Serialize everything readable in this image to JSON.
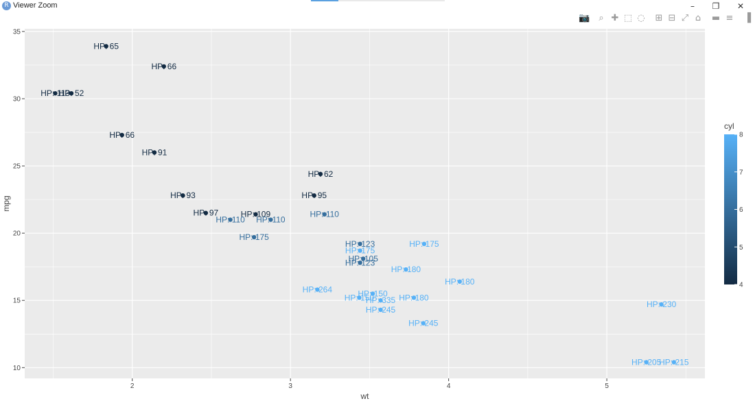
{
  "window": {
    "title": "Viewer Zoom",
    "app_icon": "R",
    "minimize_label": "–",
    "restore_label": "❐",
    "close_label": "✕"
  },
  "modebar": {
    "icons": [
      {
        "name": "camera-icon",
        "glyph": "📷"
      },
      {
        "name": "zoom-icon",
        "glyph": "⌕"
      },
      {
        "name": "pan-icon",
        "glyph": "✚"
      },
      {
        "name": "box-select-icon",
        "glyph": "⬚"
      },
      {
        "name": "lasso-select-icon",
        "glyph": "◌"
      },
      {
        "name": "zoom-in-icon",
        "glyph": "⊞"
      },
      {
        "name": "zoom-out-icon",
        "glyph": "⊟"
      },
      {
        "name": "autoscale-icon",
        "glyph": "⤢"
      },
      {
        "name": "reset-axes-icon",
        "glyph": "⌂"
      },
      {
        "name": "spike-lines-icon",
        "glyph": "▬"
      },
      {
        "name": "compare-hover-icon",
        "glyph": "≡"
      },
      {
        "name": "plotly-logo-icon",
        "glyph": "▐"
      }
    ]
  },
  "colors": {
    "low": "#132b43",
    "high": "#56b1f7",
    "panel": "#ebebeb",
    "grid": "#ffffff"
  },
  "chart_data": {
    "type": "scatter",
    "title": "",
    "xlabel": "wt",
    "ylabel": "mpg",
    "xlim": [
      1.32,
      5.62
    ],
    "ylim": [
      9.2,
      35.2
    ],
    "xticks": [
      2,
      3,
      4,
      5
    ],
    "yticks": [
      10,
      15,
      20,
      25,
      30,
      35
    ],
    "grid": true,
    "colorbar": {
      "title": "cyl",
      "min": 4,
      "max": 8,
      "ticks": [
        4,
        5,
        6,
        7,
        8
      ],
      "position": "right"
    },
    "points": [
      {
        "wt": 1.835,
        "mpg": 33.9,
        "cyl": 4,
        "label": "HP: 65"
      },
      {
        "wt": 2.2,
        "mpg": 32.4,
        "cyl": 4,
        "label": "HP: 66"
      },
      {
        "wt": 1.513,
        "mpg": 30.4,
        "cyl": 4,
        "label": "HP: 113"
      },
      {
        "wt": 1.615,
        "mpg": 30.4,
        "cyl": 4,
        "label": "HP: 52"
      },
      {
        "wt": 1.935,
        "mpg": 27.3,
        "cyl": 4,
        "label": "HP: 66"
      },
      {
        "wt": 2.14,
        "mpg": 26.0,
        "cyl": 4,
        "label": "HP: 91"
      },
      {
        "wt": 3.19,
        "mpg": 24.4,
        "cyl": 4,
        "label": "HP: 62"
      },
      {
        "wt": 2.32,
        "mpg": 22.8,
        "cyl": 4,
        "label": "HP: 93"
      },
      {
        "wt": 3.15,
        "mpg": 22.8,
        "cyl": 4,
        "label": "HP: 95"
      },
      {
        "wt": 2.465,
        "mpg": 21.5,
        "cyl": 4,
        "label": "HP: 97"
      },
      {
        "wt": 2.78,
        "mpg": 21.4,
        "cyl": 4,
        "label": "HP: 109"
      },
      {
        "wt": 3.215,
        "mpg": 21.4,
        "cyl": 6,
        "label": "HP: 110"
      },
      {
        "wt": 2.62,
        "mpg": 21.0,
        "cyl": 6,
        "label": "HP: 110"
      },
      {
        "wt": 2.875,
        "mpg": 21.0,
        "cyl": 6,
        "label": "HP: 110"
      },
      {
        "wt": 2.77,
        "mpg": 19.7,
        "cyl": 6,
        "label": "HP: 175"
      },
      {
        "wt": 3.44,
        "mpg": 19.2,
        "cyl": 6,
        "label": "HP: 123"
      },
      {
        "wt": 3.845,
        "mpg": 19.2,
        "cyl": 8,
        "label": "HP: 175"
      },
      {
        "wt": 3.44,
        "mpg": 18.7,
        "cyl": 8,
        "label": "HP: 175"
      },
      {
        "wt": 3.46,
        "mpg": 18.1,
        "cyl": 6,
        "label": "HP: 105"
      },
      {
        "wt": 3.44,
        "mpg": 17.8,
        "cyl": 6,
        "label": "HP: 123"
      },
      {
        "wt": 3.73,
        "mpg": 17.3,
        "cyl": 8,
        "label": "HP: 180"
      },
      {
        "wt": 4.07,
        "mpg": 16.4,
        "cyl": 8,
        "label": "HP: 180"
      },
      {
        "wt": 3.17,
        "mpg": 15.8,
        "cyl": 8,
        "label": "HP: 264"
      },
      {
        "wt": 3.52,
        "mpg": 15.5,
        "cyl": 8,
        "label": "HP: 150"
      },
      {
        "wt": 3.435,
        "mpg": 15.2,
        "cyl": 8,
        "label": "HP: 150"
      },
      {
        "wt": 3.78,
        "mpg": 15.2,
        "cyl": 8,
        "label": "HP: 180"
      },
      {
        "wt": 3.57,
        "mpg": 15.0,
        "cyl": 8,
        "label": "HP: 335"
      },
      {
        "wt": 5.345,
        "mpg": 14.7,
        "cyl": 8,
        "label": "HP: 230"
      },
      {
        "wt": 3.57,
        "mpg": 14.3,
        "cyl": 8,
        "label": "HP: 245"
      },
      {
        "wt": 3.84,
        "mpg": 13.3,
        "cyl": 8,
        "label": "HP: 245"
      },
      {
        "wt": 5.25,
        "mpg": 10.4,
        "cyl": 8,
        "label": "HP: 205"
      },
      {
        "wt": 5.424,
        "mpg": 10.4,
        "cyl": 8,
        "label": "HP: 215"
      }
    ]
  }
}
